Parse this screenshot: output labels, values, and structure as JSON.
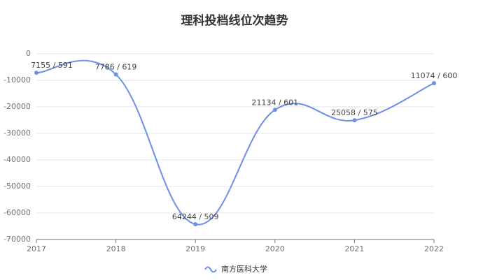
{
  "chart_data": {
    "type": "line",
    "title": "理科投档线位次趋势",
    "categories": [
      "2017",
      "2018",
      "2019",
      "2020",
      "2021",
      "2022"
    ],
    "series": [
      {
        "name": "南方医科大学",
        "color": "#6e8fe6",
        "values": [
          -7155,
          -7786,
          -64244,
          -21134,
          -25058,
          -11074
        ],
        "value_labels": [
          "7155 / 591",
          "7786 / 619",
          "64244 / 509",
          "21134 / 601",
          "25058 / 575",
          "11074 / 600"
        ]
      }
    ],
    "ylim": [
      -70000,
      0
    ],
    "yticks": [
      0,
      -10000,
      -20000,
      -30000,
      -40000,
      -50000,
      -60000,
      -70000
    ],
    "grid": true,
    "smooth": true,
    "legend": "bottom"
  }
}
